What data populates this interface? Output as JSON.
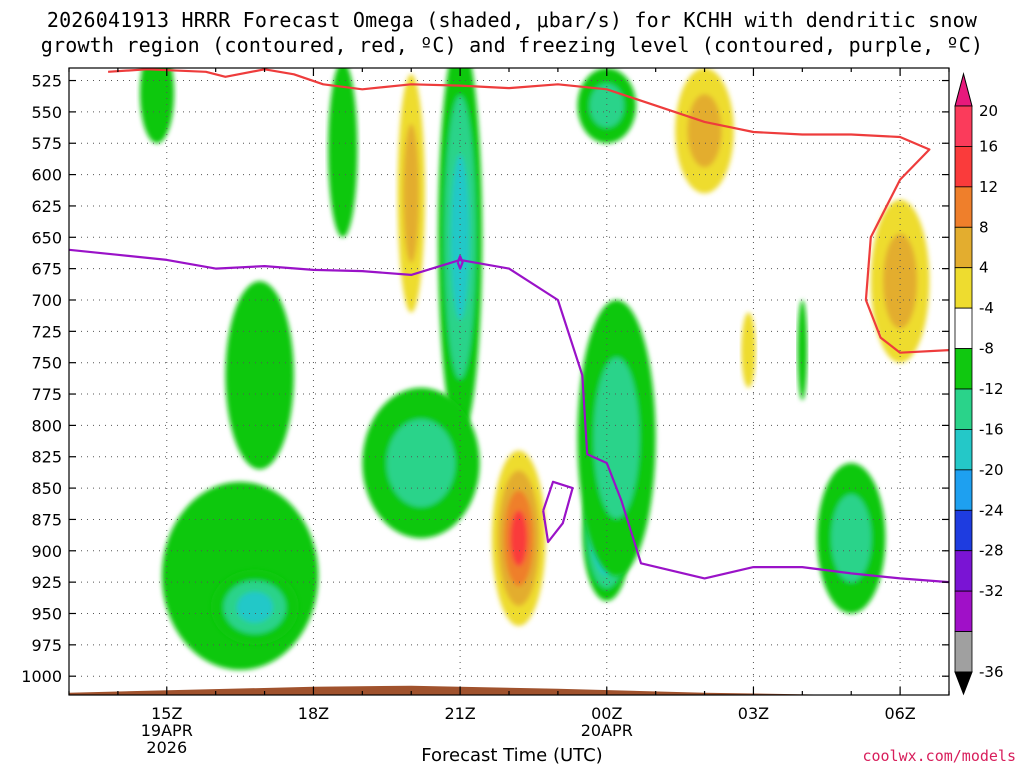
{
  "chart_data": {
    "type": "contour",
    "title_line1": "2026041913 HRRR Forecast Omega (shaded, μbar/s) for KCHH with dendritic snow",
    "title_line2": "growth region (contoured, red, ºC) and freezing level (contoured, purple, ºC)",
    "xlabel": "Forecast Time (UTC)",
    "credit": "coolwx.com/models",
    "x_ticks": [
      {
        "hour": 15,
        "label": "15Z",
        "sub1": "19APR",
        "sub2": "2026"
      },
      {
        "hour": 18,
        "label": "18Z",
        "sub1": "",
        "sub2": ""
      },
      {
        "hour": 21,
        "label": "21Z",
        "sub1": "",
        "sub2": ""
      },
      {
        "hour": 24,
        "label": "00Z",
        "sub1": "20APR",
        "sub2": ""
      },
      {
        "hour": 27,
        "label": "03Z",
        "sub1": "",
        "sub2": ""
      },
      {
        "hour": 30,
        "label": "06Z",
        "sub1": "",
        "sub2": ""
      }
    ],
    "xlim_hours": [
      13,
      31
    ],
    "ylim_mb": [
      1015,
      515
    ],
    "y_ticks": [
      525,
      550,
      575,
      600,
      625,
      650,
      675,
      700,
      725,
      750,
      775,
      800,
      825,
      850,
      875,
      900,
      925,
      950,
      975,
      1000
    ],
    "colorbar": {
      "levels": [
        20,
        16,
        12,
        8,
        4,
        -4,
        -8,
        -12,
        -16,
        -20,
        -24,
        -28,
        -32,
        -36
      ],
      "colors": [
        "#fb3b5b",
        "#fa3b3b",
        "#ef7f2b",
        "#e3ad2f",
        "#eedc2f",
        "#ffffff",
        "#10c810",
        "#2ad38a",
        "#24c8c8",
        "#1ea0f0",
        "#1e3ce0",
        "#7a14d4",
        "#a010c8",
        "#a0a0a0",
        "#000000"
      ],
      "top_arrow_color": "#e8197c",
      "bottom_arrow_color": "#000000"
    },
    "omega_features": [
      {
        "name": "sink-15z-upper",
        "hour": 14.8,
        "mb": 535,
        "w": 0.35,
        "h": 40,
        "value": -6
      },
      {
        "name": "sink-18z-upper",
        "hour": 18.6,
        "mb": 580,
        "w": 0.3,
        "h": 70,
        "value": -6
      },
      {
        "name": "updraft-15z-low",
        "hour": 16.5,
        "mb": 920,
        "w": 1.6,
        "h": 75,
        "value": -8
      },
      {
        "name": "updraft-17z-core",
        "hour": 16.8,
        "mb": 945,
        "w": 0.9,
        "h": 30,
        "value": -16
      },
      {
        "name": "updraft-17z-mid",
        "hour": 16.9,
        "mb": 760,
        "w": 0.7,
        "h": 75,
        "value": -6
      },
      {
        "name": "updraft-21z-column",
        "hour": 21.0,
        "mb": 650,
        "w": 0.45,
        "h": 160,
        "value": -16
      },
      {
        "name": "updraft-20z-lower",
        "hour": 20.2,
        "mb": 830,
        "w": 1.2,
        "h": 60,
        "value": -10
      },
      {
        "name": "sink-20z-upper",
        "hour": 20.0,
        "mb": 615,
        "w": 0.28,
        "h": 95,
        "value": 10
      },
      {
        "name": "sink-22z-low",
        "hour": 22.2,
        "mb": 890,
        "w": 0.55,
        "h": 70,
        "value": 20
      },
      {
        "name": "updraft-00z-core",
        "hour": 24.0,
        "mb": 885,
        "w": 0.5,
        "h": 55,
        "value": -24
      },
      {
        "name": "updraft-00z-column",
        "hour": 24.2,
        "mb": 810,
        "w": 0.8,
        "h": 110,
        "value": -10
      },
      {
        "name": "updraft-00z-upper",
        "hour": 24.0,
        "mb": 545,
        "w": 0.6,
        "h": 30,
        "value": -10
      },
      {
        "name": "sink-02z-upper",
        "hour": 26.0,
        "mb": 565,
        "w": 0.6,
        "h": 50,
        "value": 10
      },
      {
        "name": "sink-03z-mid",
        "hour": 26.9,
        "mb": 740,
        "w": 0.15,
        "h": 30,
        "value": 6
      },
      {
        "name": "updraft-04z-mid",
        "hour": 28.0,
        "mb": 740,
        "w": 0.1,
        "h": 40,
        "value": -6
      },
      {
        "name": "updraft-05z-low",
        "hour": 29.0,
        "mb": 890,
        "w": 0.7,
        "h": 60,
        "value": -12
      },
      {
        "name": "sink-06z-upper",
        "hour": 30.0,
        "mb": 685,
        "w": 0.6,
        "h": 65,
        "value": 12
      }
    ],
    "series": [
      {
        "name": "dendritic-growth-zone",
        "color": "#ee3c3c",
        "points": [
          [
            13.8,
            518
          ],
          [
            14.6,
            516
          ],
          [
            15.8,
            518
          ],
          [
            16.2,
            522
          ],
          [
            17.0,
            516
          ],
          [
            17.6,
            520
          ],
          [
            18.2,
            528
          ],
          [
            19.0,
            532
          ],
          [
            20.0,
            528
          ],
          [
            21.0,
            529
          ],
          [
            22.0,
            531
          ],
          [
            23.0,
            528
          ],
          [
            24.0,
            532
          ],
          [
            25.0,
            545
          ],
          [
            26.0,
            558
          ],
          [
            27.0,
            566
          ],
          [
            28.0,
            568
          ],
          [
            29.0,
            568
          ],
          [
            30.0,
            570
          ],
          [
            30.6,
            580
          ],
          [
            30.0,
            604
          ],
          [
            29.4,
            650
          ],
          [
            29.3,
            700
          ],
          [
            29.6,
            730
          ],
          [
            30.0,
            742
          ],
          [
            31.0,
            740
          ]
        ]
      },
      {
        "name": "freezing-level",
        "color": "#9a12c8",
        "points": [
          [
            13.0,
            660
          ],
          [
            14.0,
            664
          ],
          [
            15.0,
            668
          ],
          [
            16.0,
            675
          ],
          [
            17.0,
            673
          ],
          [
            18.0,
            676
          ],
          [
            19.0,
            677
          ],
          [
            20.0,
            680
          ],
          [
            21.0,
            668
          ],
          [
            22.0,
            675
          ],
          [
            23.0,
            700
          ],
          [
            23.5,
            760
          ],
          [
            23.6,
            823
          ],
          [
            24.0,
            830
          ],
          [
            24.3,
            860
          ],
          [
            24.7,
            910
          ],
          [
            26.0,
            922
          ],
          [
            27.0,
            913
          ],
          [
            28.0,
            913
          ],
          [
            29.0,
            918
          ],
          [
            30.0,
            922
          ],
          [
            31.0,
            925
          ]
        ]
      },
      {
        "name": "freezing-level-loop-23z",
        "color": "#9a12c8",
        "points": [
          [
            22.7,
            868
          ],
          [
            22.9,
            845
          ],
          [
            23.3,
            850
          ],
          [
            23.1,
            878
          ],
          [
            22.8,
            893
          ],
          [
            22.7,
            868
          ]
        ]
      },
      {
        "name": "freezing-level-blip-21z",
        "color": "#9a12c8",
        "points": [
          [
            20.95,
            670
          ],
          [
            21.0,
            665
          ],
          [
            21.05,
            670
          ],
          [
            21.0,
            675
          ],
          [
            20.95,
            670
          ]
        ]
      }
    ],
    "grid": true
  }
}
